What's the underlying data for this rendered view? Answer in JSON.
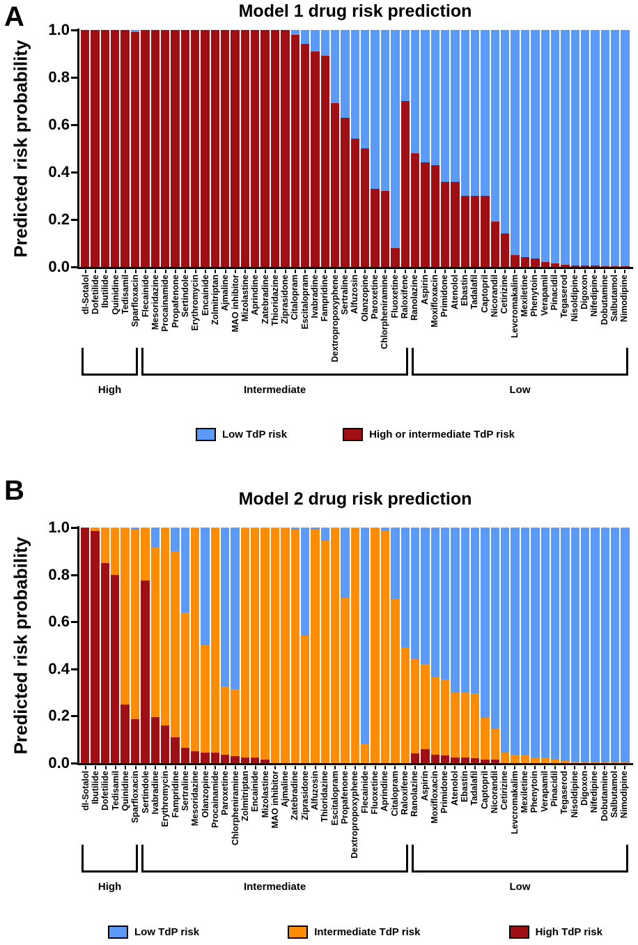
{
  "colors": {
    "low": "#5B9AF6",
    "intermediate": "#FF8C05",
    "high": "#A00F14",
    "axis": "#000000",
    "background": "#FFFFFF"
  },
  "panels": [
    {
      "letter": "A",
      "title": "Model 1 drug risk prediction",
      "y_axis_label": "Predicted risk probability",
      "y_ticks": [
        "1.0",
        "0.8",
        "0.6",
        "0.4",
        "0.2",
        "0.0"
      ],
      "group_labels": [
        {
          "label": "High",
          "count": 6
        },
        {
          "label": "Intermediate",
          "count": 27
        },
        {
          "label": "Low",
          "count": 22
        }
      ],
      "legend": [
        {
          "label": "Low TdP risk",
          "color_key": "low"
        },
        {
          "label": "High or intermediate TdP risk",
          "color_key": "high"
        }
      ],
      "chart_data": {
        "type": "bar",
        "stacked": true,
        "ylim": [
          0,
          1
        ],
        "ylabel": "Predicted risk probability",
        "title": "Model 1 drug risk prediction",
        "categories": [
          "dl-Sotalol",
          "Dofetilide",
          "Ibutilide",
          "Quinidine",
          "Tedisamil",
          "Sparfloxacin",
          "Flecainide",
          "Mesoridazine",
          "Procainamide",
          "Propafenone",
          "Sertindole",
          "Erythromycin",
          "Encainide",
          "Zolmitriptan",
          "Ajmaline",
          "MAO inhibitor",
          "Mizolastine",
          "Aprindine",
          "Zatebradine",
          "Thioridazine",
          "Ziprasidone",
          "Citalopram",
          "Escitalopram",
          "Ivabradine",
          "Fampridine",
          "Dextropropoxyphene",
          "Sertraline",
          "Alfuzosin",
          "Olanzopine",
          "Paroxetine",
          "Chlorpheniramine",
          "Fluoxetine",
          "Raloxifene",
          "Ranolazine",
          "Aspirin",
          "Moxifloxacin",
          "Primidone",
          "Atenolol",
          "Ebastin",
          "Tadalafil",
          "Captopril",
          "Nicorandil",
          "Cetirizine",
          "Levcromakalim",
          "Mexiletine",
          "Phenytoin",
          "Verapamil",
          "Pinacidil",
          "Tegaserod",
          "Nisoldipine",
          "Digoxon",
          "Nifedipine",
          "Dobutamine",
          "Salbutamol",
          "Nimodipine"
        ],
        "series": [
          {
            "name": "High or intermediate TdP risk",
            "color_key": "high",
            "values": [
              1,
              1,
              1,
              1,
              1,
              0.99,
              1,
              1,
              1,
              1,
              1,
              1,
              1,
              1,
              1,
              1,
              1,
              1,
              1,
              1,
              1,
              0.98,
              0.94,
              0.91,
              0.89,
              0.69,
              0.63,
              0.54,
              0.5,
              0.33,
              0.32,
              0.08,
              0.7,
              0.48,
              0.44,
              0.43,
              0.36,
              0.36,
              0.3,
              0.3,
              0.3,
              0.19,
              0.14,
              0.05,
              0.04,
              0.035,
              0.02,
              0.015,
              0.01,
              0.005,
              0.005,
              0.005,
              0.004,
              0.004,
              0.004
            ]
          },
          {
            "name": "Low TdP risk",
            "color_key": "low",
            "values": [
              0,
              0,
              0,
              0,
              0,
              0.01,
              0,
              0,
              0,
              0,
              0,
              0,
              0,
              0,
              0,
              0,
              0,
              0,
              0,
              0,
              0,
              0.02,
              0.06,
              0.09,
              0.11,
              0.31,
              0.37,
              0.46,
              0.5,
              0.67,
              0.68,
              0.92,
              0.3,
              0.52,
              0.56,
              0.57,
              0.64,
              0.64,
              0.7,
              0.7,
              0.7,
              0.81,
              0.86,
              0.95,
              0.96,
              0.965,
              0.98,
              0.985,
              0.99,
              0.995,
              0.995,
              0.995,
              0.996,
              0.996,
              0.996
            ]
          }
        ]
      }
    },
    {
      "letter": "B",
      "title": "Model 2 drug risk prediction",
      "y_axis_label": "Predicted risk probability",
      "y_ticks": [
        "1.0",
        "0.8",
        "0.6",
        "0.4",
        "0.2",
        "0.0"
      ],
      "group_labels": [
        {
          "label": "High",
          "count": 6
        },
        {
          "label": "Intermediate",
          "count": 27
        },
        {
          "label": "Low",
          "count": 22
        }
      ],
      "legend": [
        {
          "label": "Low TdP risk",
          "color_key": "low"
        },
        {
          "label": "Intermediate TdP risk",
          "color_key": "intermediate"
        },
        {
          "label": "High TdP risk",
          "color_key": "high"
        }
      ],
      "chart_data": {
        "type": "bar",
        "stacked": true,
        "ylim": [
          0,
          1
        ],
        "ylabel": "Predicted risk probability",
        "title": "Model 2 drug risk prediction",
        "categories": [
          "dl-Sotalol",
          "Ibutilide",
          "Dofetilide",
          "Tedisamil",
          "Quinidine",
          "Sparfloxacin",
          "Sertindole",
          "Ivabradine",
          "Erythromycin",
          "Fampridine",
          "Sertraline",
          "Mesoridazine",
          "Olanzopine",
          "Procainamide",
          "Paroxetine",
          "Chlorpheniramine",
          "Zolmitriptan",
          "Encainide",
          "Mizolastine",
          "MAO inhibitor",
          "Ajmaline",
          "Zatebradine",
          "Ziprasidone",
          "Alfuzosin",
          "Thioridazine",
          "Escitalopram",
          "Propafenone",
          "Dextropropoxyphene",
          "Flecainide",
          "Fluoxetine",
          "Aprindine",
          "Citalopram",
          "Raloxifene",
          "Ranolazine",
          "Aspirin",
          "Moxifloxacin",
          "Primidone",
          "Atenolol",
          "Ebastin",
          "Tadalafil",
          "Captopril",
          "Nicorandil",
          "Cetirizine",
          "Levcromakalim",
          "Mexiletine",
          "Phenytoin",
          "Verapamil",
          "Pinacidil",
          "Tegaserod",
          "Nisoldipine",
          "Digoxon",
          "Nifedipine",
          "Dobutamine",
          "Salbutamol",
          "Nimodipine"
        ],
        "series": [
          {
            "name": "High TdP risk",
            "color_key": "high",
            "values": [
              1,
              0.985,
              0.85,
              0.8,
              0.25,
              0.185,
              0.775,
              0.195,
              0.16,
              0.11,
              0.065,
              0.05,
              0.045,
              0.045,
              0.035,
              0.03,
              0.025,
              0.025,
              0.015,
              0,
              0,
              0,
              0,
              0,
              0,
              0,
              0,
              0,
              0,
              0,
              0,
              0,
              0,
              0.04,
              0.06,
              0.035,
              0.033,
              0.025,
              0.025,
              0.02,
              0.015,
              0.015,
              0,
              0,
              0,
              0,
              0,
              0,
              0,
              0,
              0,
              0,
              0,
              0,
              0
            ]
          },
          {
            "name": "Intermediate TdP risk",
            "color_key": "intermediate",
            "values": [
              0,
              0.015,
              0.15,
              0.2,
              0.75,
              0.805,
              0.225,
              0.72,
              0.84,
              0.79,
              0.575,
              0.95,
              0.455,
              0.955,
              0.29,
              0.285,
              0.975,
              0.975,
              0.985,
              1,
              1,
              0.99,
              0.54,
              0.99,
              0.945,
              1,
              0.7,
              1,
              0.08,
              1,
              0.985,
              0.695,
              0.49,
              0.4,
              0.36,
              0.33,
              0.322,
              0.275,
              0.275,
              0.275,
              0.177,
              0.13,
              0.045,
              0.036,
              0.033,
              0.025,
              0.022,
              0.015,
              0.008,
              0.005,
              0.003,
              0.003,
              0.002,
              0.002,
              0.002
            ]
          },
          {
            "name": "Low TdP risk",
            "color_key": "low",
            "values": [
              0,
              0,
              0,
              0,
              0,
              0.01,
              0,
              0.085,
              0,
              0.1,
              0.36,
              0,
              0.5,
              0,
              0.675,
              0.685,
              0,
              0,
              0,
              0,
              0,
              0.01,
              0.46,
              0.01,
              0.055,
              0,
              0.3,
              0,
              0.92,
              0,
              0.015,
              0.305,
              0.51,
              0.56,
              0.58,
              0.635,
              0.645,
              0.7,
              0.7,
              0.705,
              0.808,
              0.855,
              0.955,
              0.964,
              0.967,
              0.975,
              0.978,
              0.985,
              0.992,
              0.995,
              0.997,
              0.997,
              0.998,
              0.998,
              0.998
            ]
          }
        ]
      }
    }
  ]
}
